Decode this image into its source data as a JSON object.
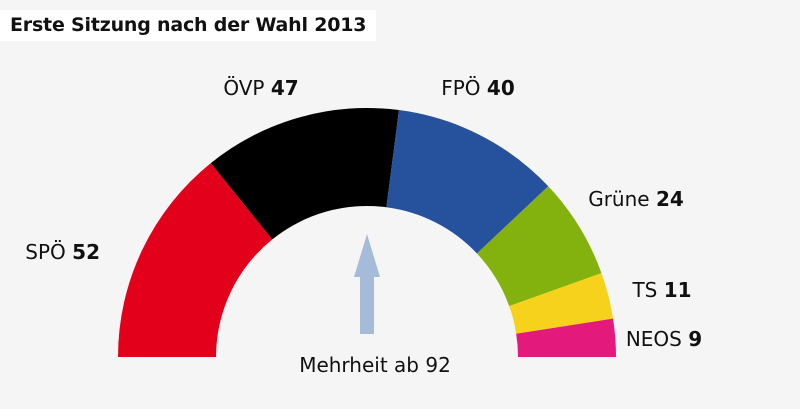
{
  "chart_data": {
    "type": "parliament-semicircle",
    "title": "Erste Sitzung nach der Wahl 2013",
    "total_seats": 183,
    "majority_label": "Mehrheit ab 92",
    "majority": 92,
    "parties": [
      {
        "name": "SPÖ",
        "seats": 52,
        "color": "#e2001a"
      },
      {
        "name": "ÖVP",
        "seats": 47,
        "color": "#000000"
      },
      {
        "name": "FPÖ",
        "seats": 40,
        "color": "#26519c"
      },
      {
        "name": "Grüne",
        "seats": 24,
        "color": "#83b20e"
      },
      {
        "name": "TS",
        "seats": 11,
        "color": "#f6d21c"
      },
      {
        "name": "NEOS",
        "seats": 9,
        "color": "#e3197c"
      }
    ],
    "arrow_color": "#a6bbd8"
  }
}
